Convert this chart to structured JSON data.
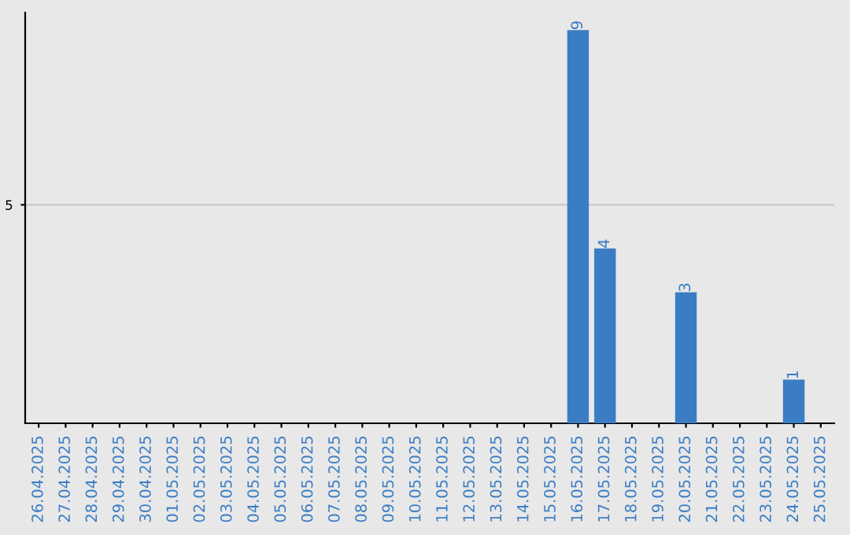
{
  "chart_data": {
    "type": "bar",
    "categories": [
      "26.04.2025",
      "27.04.2025",
      "28.04.2025",
      "29.04.2025",
      "30.04.2025",
      "01.05.2025",
      "02.05.2025",
      "03.05.2025",
      "04.05.2025",
      "05.05.2025",
      "06.05.2025",
      "07.05.2025",
      "08.05.2025",
      "09.05.2025",
      "10.05.2025",
      "11.05.2025",
      "12.05.2025",
      "13.05.2025",
      "14.05.2025",
      "15.05.2025",
      "16.05.2025",
      "17.05.2025",
      "18.05.2025",
      "19.05.2025",
      "20.05.2025",
      "21.05.2025",
      "22.05.2025",
      "23.05.2025",
      "24.05.2025",
      "25.05.2025"
    ],
    "values": [
      null,
      null,
      null,
      null,
      null,
      null,
      null,
      null,
      null,
      null,
      null,
      null,
      null,
      null,
      null,
      null,
      null,
      null,
      null,
      null,
      9,
      4,
      null,
      null,
      3,
      null,
      null,
      null,
      1,
      null
    ],
    "data_labels": true,
    "color": "#3b7dc4",
    "ylim": [
      0,
      9.4
    ],
    "yticks": [
      5
    ],
    "grid": "y"
  }
}
